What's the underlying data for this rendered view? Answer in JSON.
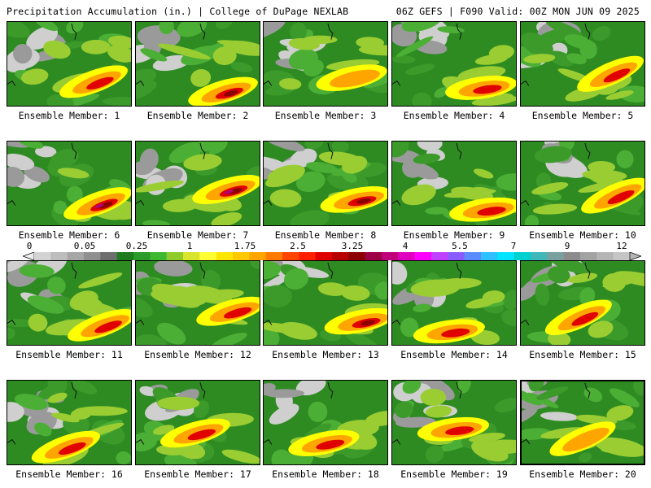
{
  "header": {
    "left": "Precipitation Accumulation (in.) | College of DuPage NEXLAB",
    "right": "06Z GEFS | F090 Valid: 00Z MON JUN 09 2025"
  },
  "legend": {
    "ticks": [
      "0",
      "0.05",
      "0.25",
      "1",
      "1.75",
      "2.5",
      "3.25",
      "4",
      "5.5",
      "7",
      "9",
      "12"
    ],
    "colors": [
      "#d3d3d3",
      "#bdbdbd",
      "#a6a6a6",
      "#8f8f8f",
      "#6e6e6e",
      "#1e7b1e",
      "#2a9a2a",
      "#3db82f",
      "#8fcc2b",
      "#d8e52c",
      "#ffff33",
      "#ffe600",
      "#ffc800",
      "#ffa500",
      "#ff7a00",
      "#ff4500",
      "#ff2000",
      "#e00000",
      "#b80000",
      "#8b0000",
      "#9c0045",
      "#c0007a",
      "#e000c0",
      "#ff00ff",
      "#c040ff",
      "#8a5cff",
      "#5a8cff",
      "#30c0ff",
      "#00e5ff",
      "#00d0d0",
      "#40b8b8",
      "#7aa0a0",
      "#8c8c8c",
      "#a3a3a3",
      "#b5b5b5",
      "#c5c5c5"
    ]
  },
  "panel_palette": {
    "background": "#2e8b22",
    "light_green": "#4caf35",
    "mid_green": "#3c9a2b",
    "yellow_green": "#9acd32",
    "yellow": "#ffff00",
    "orange": "#ffa500",
    "red": "#e00000",
    "dark_red": "#8b0000",
    "magenta": "#b0007a",
    "gray": "#9a9a9a",
    "light_gray": "#cfcfcf"
  },
  "panels": [
    {
      "label": "Ensemble Member: 1"
    },
    {
      "label": "Ensemble Member: 2"
    },
    {
      "label": "Ensemble Member: 3"
    },
    {
      "label": "Ensemble Member: 4"
    },
    {
      "label": "Ensemble Member: 5"
    },
    {
      "label": "Ensemble Member: 6"
    },
    {
      "label": "Ensemble Member: 7"
    },
    {
      "label": "Ensemble Member: 8"
    },
    {
      "label": "Ensemble Member: 9"
    },
    {
      "label": "Ensemble Member: 10"
    },
    {
      "label": "Ensemble Member: 11"
    },
    {
      "label": "Ensemble Member: 12"
    },
    {
      "label": "Ensemble Member: 13"
    },
    {
      "label": "Ensemble Member: 14"
    },
    {
      "label": "Ensemble Member: 15"
    },
    {
      "label": "Ensemble Member: 16"
    },
    {
      "label": "Ensemble Member: 17"
    },
    {
      "label": "Ensemble Member: 18"
    },
    {
      "label": "Ensemble Member: 19"
    },
    {
      "label": "Ensemble Member: 20"
    }
  ]
}
